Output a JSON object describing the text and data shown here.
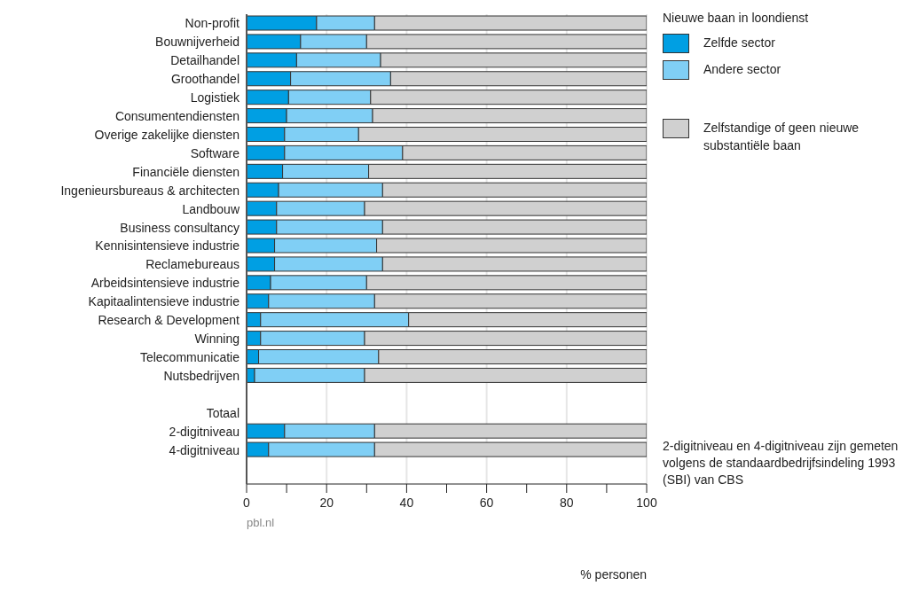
{
  "chart_data": {
    "type": "bar",
    "orientation": "horizontal",
    "stacked": true,
    "categories": [
      "Non-profit",
      "Bouwnijverheid",
      "Detailhandel",
      "Groothandel",
      "Logistiek",
      "Consumentendiensten",
      "Overige zakelijke diensten",
      "Software",
      "Financiële diensten",
      "Ingenieursbureaus & architecten",
      "Landbouw",
      "Business consultancy",
      "Kennisintensieve industrie",
      "Reclamebureaus",
      "Arbeidsintensieve industrie",
      "Kapitaalintensieve industrie",
      "Research & Development",
      "Winning",
      "Telecommunicatie",
      "Nutsbedrijven",
      null,
      "Totaal",
      "2-digitniveau",
      "4-digitniveau"
    ],
    "series": [
      {
        "name": "Zelfde sector",
        "color": "#009fe3",
        "values": [
          17.5,
          13.5,
          12.5,
          11,
          10.5,
          10,
          9.5,
          9.5,
          9,
          8,
          7.5,
          7.5,
          7,
          7,
          6,
          5.5,
          3.5,
          3.5,
          3,
          2,
          null,
          null,
          9.5,
          5.5
        ]
      },
      {
        "name": "Andere sector",
        "color": "#80cff5",
        "values": [
          14.5,
          16.5,
          21,
          25,
          20.5,
          21.5,
          18.5,
          29.5,
          21.5,
          26,
          22,
          26.5,
          25.5,
          27,
          24,
          26.5,
          37,
          26,
          30,
          27.5,
          null,
          null,
          22.5,
          26.5
        ]
      },
      {
        "name": "Zelfstandige of geen nieuwe substantiële baan",
        "color": "#d0d0d0",
        "values": [
          68,
          70,
          66.5,
          64,
          69,
          68.5,
          72,
          61,
          69.5,
          66,
          70.5,
          66,
          67.5,
          66,
          70,
          68,
          59.5,
          70.5,
          67,
          70.5,
          null,
          null,
          68,
          68
        ]
      }
    ],
    "legend_title": "Nieuwe baan in loondienst",
    "legend": "right",
    "xlabel": "% personen",
    "xlim": [
      0,
      100
    ],
    "xticks": [
      0,
      {
        "value": 10,
        "label": null
      },
      20,
      {
        "value": 30,
        "label": null
      },
      40,
      {
        "value": 50,
        "label": null
      },
      60,
      {
        "value": 70,
        "label": null
      },
      80,
      {
        "value": 90,
        "label": null
      },
      100
    ],
    "grid": "x",
    "annotations": [
      "pbl.nl",
      "2-digitniveau en 4-digitniveau zijn gemeten volgens de standaardbedrijfsindeling 1993 (SBI) van CBS"
    ]
  }
}
